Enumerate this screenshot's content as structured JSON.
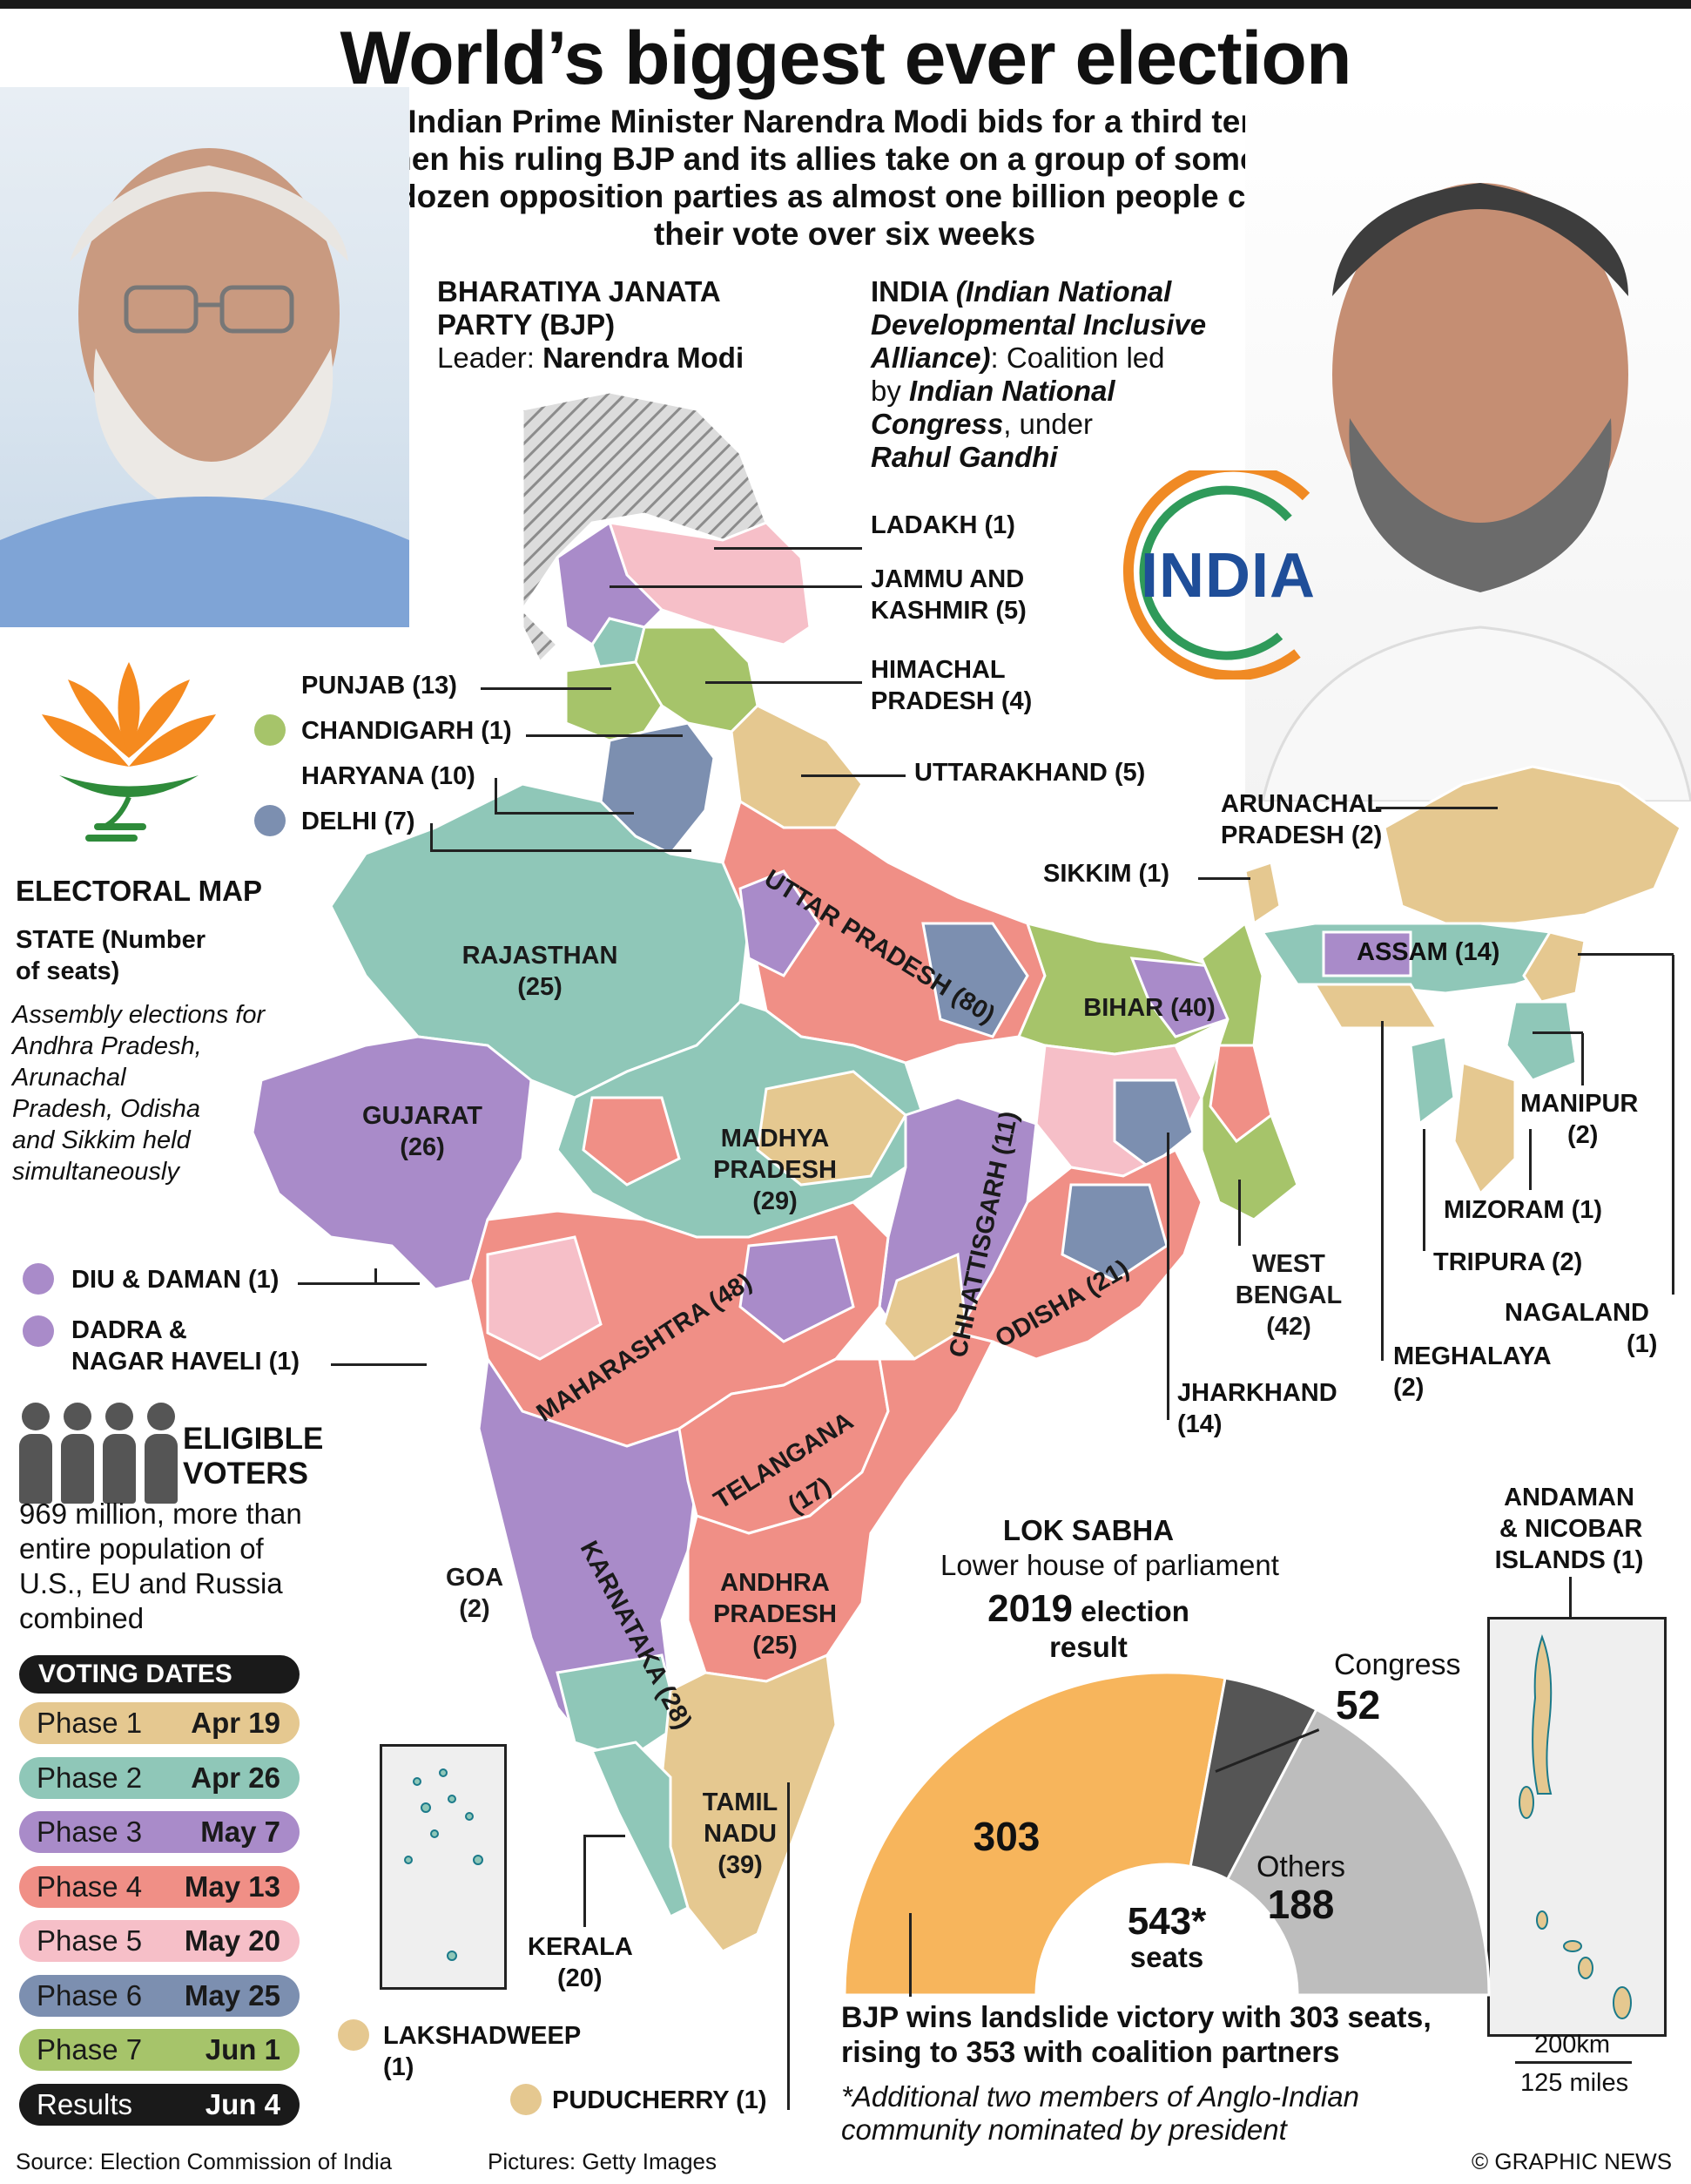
{
  "title": "World’s biggest ever election",
  "subtitle": "Indian Prime Minister Narendra Modi bids for a third term when his ruling BJP and its allies take on a group of some two dozen opposition parties as almost one billion people cast their vote over six weeks",
  "bjp": {
    "name_line1": "BHARATIYA JANATA",
    "name_line2": "PARTY (BJP)",
    "leader_prefix": "Leader: ",
    "leader": "Narendra Modi"
  },
  "india_alliance": {
    "name": "INDIA",
    "expansion_line1": "(Indian National",
    "expansion_line2": "Developmental Inclusive",
    "expansion_line3": "Alliance)",
    "coalition_text": ": Coalition led",
    "by_text": "by ",
    "led_by_line1": "Indian National",
    "led_by_line2": "Congress",
    "under_text": ", under",
    "leader": "Rahul Gandhi",
    "logo_text": "INDIA"
  },
  "legend": {
    "heading": "ELECTORAL MAP",
    "state_heading_line1": "STATE (Number",
    "state_heading_line2": "of seats)",
    "note_line1": "Assembly elections for",
    "note_line2": "Andhra Pradesh,",
    "note_line3": "Arunachal",
    "note_line4": "Pradesh, Odisha",
    "note_line5": "and Sikkim held",
    "note_line6": "simultaneously"
  },
  "voters": {
    "heading_line1": "ELIGIBLE",
    "heading_line2": "VOTERS",
    "text_line1": "969 million, more than",
    "text_line2": "entire population of",
    "text_line3": "U.S., EU and Russia",
    "text_line4": "combined"
  },
  "voting_dates": {
    "heading": "VOTING DATES",
    "phases": [
      {
        "name": "Phase 1",
        "date": "Apr 19",
        "color": "#e5c890"
      },
      {
        "name": "Phase 2",
        "date": "Apr 26",
        "color": "#8fc7b8"
      },
      {
        "name": "Phase 3",
        "date": "May 7",
        "color": "#a98bc9"
      },
      {
        "name": "Phase 4",
        "date": "May 13",
        "color": "#f08f86"
      },
      {
        "name": "Phase 5",
        "date": "May 20",
        "color": "#f6bfc8"
      },
      {
        "name": "Phase 6",
        "date": "May 25",
        "color": "#7c8fb0"
      },
      {
        "name": "Phase 7",
        "date": "Jun 1",
        "color": "#a6c46a"
      },
      {
        "name": "Results",
        "date": "Jun 4",
        "color": "#1a1a1a"
      }
    ]
  },
  "states": {
    "ladakh": "LADAKH (1)",
    "jk_line1": "JAMMU AND",
    "jk_line2": "KASHMIR (5)",
    "hp_line1": "HIMACHAL",
    "hp_line2": "PRADESH (4)",
    "punjab": "PUNJAB (13)",
    "chandigarh": "CHANDIGARH (1)",
    "haryana": "HARYANA (10)",
    "delhi": "DELHI (7)",
    "uttarakhand": "UTTARAKHAND (5)",
    "arunachal_line1": "ARUNACHAL",
    "arunachal_line2": "PRADESH (2)",
    "sikkim": "SIKKIM (1)",
    "assam": "ASSAM (14)",
    "rajasthan_line1": "RAJASTHAN",
    "rajasthan_line2": "(25)",
    "up": "UTTAR PRADESH (80)",
    "bihar": "BIHAR (40)",
    "gujarat_line1": "GUJARAT",
    "gujarat_line2": "(26)",
    "mp_line1": "MADHYA",
    "mp_line2": "PRADESH",
    "mp_line3": "(29)",
    "chhattisgarh": "CHHATTISGARH (11)",
    "manipur_line1": "MANIPUR",
    "manipur_line2": "(2)",
    "mizoram": "MIZORAM (1)",
    "tripura": "TRIPURA (2)",
    "wb_line1": "WEST",
    "wb_line2": "BENGAL",
    "wb_line3": "(42)",
    "nagaland_line1": "NAGALAND",
    "nagaland_line2": "(1)",
    "diu": "DIU & DAMAN (1)",
    "dnh_line1": "DADRA &",
    "dnh_line2": "NAGAR HAVELI (1)",
    "maharashtra": "MAHARASHTRA (48)",
    "odisha": "ODISHA (21)",
    "meghalaya_line1": "MEGHALAYA",
    "meghalaya_line2": "(2)",
    "jharkhand_line1": "JHARKHAND",
    "jharkhand_line2": "(14)",
    "telangana_line1": "TELANGANA",
    "telangana_line2": "(17)",
    "goa_line1": "GOA",
    "goa_line2": "(2)",
    "karnataka": "KARNATAKA (28)",
    "ap_line1": "ANDHRA",
    "ap_line2": "PRADESH",
    "ap_line3": "(25)",
    "tn_line1": "TAMIL",
    "tn_line2": "NADU",
    "tn_line3": "(39)",
    "kerala_line1": "KERALA",
    "kerala_line2": "(20)",
    "lakshadweep_line1": "LAKSHADWEEP",
    "lakshadweep_line2": "(1)",
    "puducherry": "PUDUCHERRY (1)",
    "andaman_line1": "ANDAMAN",
    "andaman_line2": "& NICOBAR",
    "andaman_line3": "ISLANDS (1)"
  },
  "colors": {
    "phase1": "#e5c890",
    "phase2": "#8fc7b8",
    "phase3": "#a98bc9",
    "phase4": "#f08f86",
    "phase5": "#f6bfc8",
    "phase6": "#7c8fb0",
    "phase7": "#a6c46a",
    "bjp_orange": "#f7b55c",
    "congress_dark": "#555555",
    "others_grey": "#bdbdbd"
  },
  "lok_sabha": {
    "heading": "LOK SABHA",
    "subheading": "Lower house of parliament",
    "year": "2019",
    "year_suffix": " election",
    "result": "result",
    "total": "543*",
    "total_label": "seats",
    "segments": [
      {
        "label": "BJP",
        "value": 303,
        "display": "303"
      },
      {
        "label": "Congress",
        "value": 52,
        "display": "52"
      },
      {
        "label": "Others",
        "value": 188,
        "display": "188"
      }
    ],
    "congress_label": "Congress",
    "others_label": "Others",
    "caption_line1": "BJP wins landslide victory with 303 seats,",
    "caption_line2": "rising to 353 with coalition partners",
    "footnote_line1": "*Additional two members of Anglo-Indian",
    "footnote_line2": "community nominated by president"
  },
  "scale": {
    "km": "200km",
    "miles": "125 miles"
  },
  "footer": {
    "source": "Source: Election Commission of India",
    "pictures": "Pictures: Getty Images",
    "credit": "© GRAPHIC NEWS"
  }
}
